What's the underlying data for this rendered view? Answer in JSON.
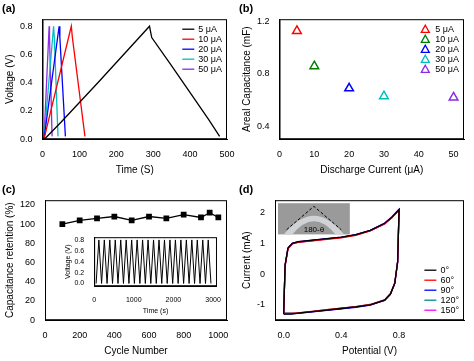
{
  "chart_data": [
    {
      "type": "line",
      "title": "(a)",
      "x_label": "Time (S)",
      "y_label": "Voltage (V)",
      "xlim": [
        0,
        500
      ],
      "xticks": [
        0,
        100,
        200,
        300,
        400,
        500
      ],
      "ylim": [
        0,
        0.85
      ],
      "yticks": [
        {
          "value": 0,
          "label": "0.0"
        },
        0.2,
        0.4,
        0.6,
        0.8
      ],
      "grid": false,
      "legend": "upper right",
      "marker": "none",
      "series": [
        {
          "name": "5 μA",
          "color": "#000000",
          "x": [
            5,
            50,
            150,
            290,
            296,
            350,
            400,
            450,
            480
          ],
          "values": [
            0,
            0.12,
            0.4,
            0.8,
            0.72,
            0.52,
            0.33,
            0.14,
            0.02
          ]
        },
        {
          "name": "10 μA",
          "color": "#ff0000",
          "x": [
            4,
            78,
            81,
            115
          ],
          "values": [
            0,
            0.8,
            0.72,
            0.02
          ]
        },
        {
          "name": "20 μA",
          "color": "#0000ff",
          "x": [
            4,
            45,
            47,
            62
          ],
          "values": [
            0,
            0.8,
            0.72,
            0.02
          ]
        },
        {
          "name": "30 μA",
          "color": "#00bfbf",
          "x": [
            4,
            30,
            32,
            42
          ],
          "values": [
            0,
            0.8,
            0.72,
            0.02
          ]
        },
        {
          "name": "50 μA",
          "color": "#8b2be2",
          "x": [
            4,
            18,
            19,
            26
          ],
          "values": [
            0,
            0.8,
            0.72,
            0.02
          ]
        }
      ]
    },
    {
      "type": "scatter",
      "title": "(b)",
      "x_label": "Discharge Current (μA)",
      "y_label": "Areal Capacitance (mF)",
      "xlim": [
        0,
        53
      ],
      "xticks": [
        0,
        10,
        20,
        30,
        40,
        50
      ],
      "ylim": [
        0.3,
        1.22
      ],
      "yticks": [
        0.4,
        0.8,
        1.2
      ],
      "grid": false,
      "legend": "upper right",
      "marker": "triangle",
      "series": [
        {
          "name": "5 μA",
          "color": "#ff0000",
          "x": [
            5
          ],
          "values": [
            1.13
          ]
        },
        {
          "name": "10 μA",
          "color": "#008000",
          "x": [
            10
          ],
          "values": [
            0.86
          ]
        },
        {
          "name": "20 μA",
          "color": "#0000ff",
          "x": [
            20
          ],
          "values": [
            0.69
          ]
        },
        {
          "name": "30 μA",
          "color": "#00bfbf",
          "x": [
            30
          ],
          "values": [
            0.63
          ]
        },
        {
          "name": "50 μA",
          "color": "#8b2be2",
          "x": [
            50
          ],
          "values": [
            0.62
          ]
        }
      ]
    },
    {
      "type": "line",
      "title": "(c)",
      "x_label": "Cycle Number",
      "y_label": "Capacitance retention (%)",
      "xlim": [
        0,
        1050
      ],
      "xticks": [
        0,
        200,
        400,
        600,
        800,
        1000
      ],
      "ylim": [
        0,
        125
      ],
      "yticks": [
        0,
        20,
        40,
        60,
        80,
        100,
        120
      ],
      "grid": false,
      "marker": "square",
      "series": [
        {
          "color": "#000000",
          "x": [
            100,
            200,
            300,
            400,
            500,
            600,
            700,
            800,
            900,
            950,
            1000
          ],
          "values": [
            100,
            104,
            106,
            108,
            104,
            108,
            106,
            110,
            107,
            112,
            107
          ]
        }
      ]
    },
    {
      "type": "line",
      "x_label": "Time (s)",
      "y_label": "Voltage (V)",
      "xlim": [
        0,
        3100
      ],
      "xticks": [
        0,
        1000,
        2000,
        3000
      ],
      "ylim": [
        -0.05,
        0.85
      ],
      "yticks": [
        {
          "value": 0,
          "label": "0.0"
        },
        0.2,
        0.4,
        0.6,
        0.8
      ],
      "grid": false,
      "marker": "none",
      "series": [
        {
          "color": "#000000",
          "x": [
            50,
            119,
            188,
            257,
            326,
            395,
            464,
            533,
            602,
            671,
            740,
            809,
            878,
            947,
            1016,
            1085,
            1154,
            1223,
            1292,
            1361,
            1430,
            1499,
            1568,
            1637,
            1706,
            1775,
            1844,
            1913,
            1982,
            2051,
            2120,
            2189,
            2258,
            2327,
            2396,
            2465,
            2534,
            2603,
            2672,
            2741,
            2810,
            2879,
            2948
          ],
          "values": [
            0,
            0.8,
            0,
            0.8,
            0,
            0.8,
            0,
            0.8,
            0,
            0.8,
            0,
            0.8,
            0,
            0.8,
            0,
            0.8,
            0,
            0.8,
            0,
            0.8,
            0,
            0.8,
            0,
            0.8,
            0,
            0.8,
            0,
            0.8,
            0,
            0.8,
            0,
            0.8,
            0,
            0.8,
            0,
            0.8,
            0,
            0.8,
            0,
            0.8,
            0,
            0.8,
            0
          ]
        }
      ]
    },
    {
      "type": "line",
      "title": "(d)",
      "x_label": "Potential (V)",
      "y_label": "Current (mA)",
      "xlim": [
        -0.06,
        1.25
      ],
      "xticks": [
        {
          "value": 0,
          "label": "0.0"
        },
        0.4,
        0.8
      ],
      "ylim": [
        -1.5,
        2.4
      ],
      "yticks": [
        -1,
        0,
        1,
        2
      ],
      "grid": false,
      "legend": "lower right",
      "marker": "none",
      "annotations": [
        "180-θ"
      ],
      "series": [
        {
          "name": "0°",
          "color": "#000000",
          "x": [
            0,
            0.01,
            0.03,
            0.06,
            0.1,
            0.2,
            0.3,
            0.4,
            0.5,
            0.6,
            0.7,
            0.75,
            0.8,
            0.79,
            0.77,
            0.74,
            0.7,
            0.6,
            0.5,
            0.4,
            0.3,
            0.2,
            0.1,
            0.05,
            0
          ],
          "values": [
            -1.3,
            0.3,
            0.85,
            1.0,
            1.05,
            1.1,
            1.15,
            1.2,
            1.28,
            1.42,
            1.65,
            1.85,
            2.1,
            0.4,
            -0.3,
            -0.65,
            -0.85,
            -1.0,
            -1.07,
            -1.12,
            -1.17,
            -1.22,
            -1.27,
            -1.3,
            -1.3
          ]
        },
        {
          "name": "60°",
          "color": "#ff0000",
          "x": [
            0,
            0.01,
            0.03,
            0.06,
            0.1,
            0.2,
            0.3,
            0.4,
            0.5,
            0.6,
            0.7,
            0.75,
            0.8,
            0.79,
            0.77,
            0.74,
            0.7,
            0.6,
            0.5,
            0.4,
            0.3,
            0.2,
            0.1,
            0.05,
            0
          ],
          "values": [
            -1.28,
            0.25,
            0.82,
            0.98,
            1.03,
            1.08,
            1.13,
            1.18,
            1.26,
            1.4,
            1.63,
            1.83,
            2.08,
            0.38,
            -0.3,
            -0.64,
            -0.84,
            -0.99,
            -1.06,
            -1.11,
            -1.16,
            -1.21,
            -1.26,
            -1.28,
            -1.28
          ]
        },
        {
          "name": "90°",
          "color": "#0000ff",
          "x": [
            0,
            0.01,
            0.03,
            0.06,
            0.1,
            0.2,
            0.3,
            0.4,
            0.5,
            0.6,
            0.7,
            0.75,
            0.8,
            0.79,
            0.77,
            0.74,
            0.7,
            0.6,
            0.5,
            0.4,
            0.3,
            0.2,
            0.1,
            0.05,
            0
          ],
          "values": [
            -1.29,
            0.28,
            0.84,
            0.99,
            1.04,
            1.09,
            1.14,
            1.19,
            1.27,
            1.41,
            1.64,
            1.84,
            2.09,
            0.39,
            -0.31,
            -0.66,
            -0.86,
            -1.01,
            -1.08,
            -1.13,
            -1.18,
            -1.23,
            -1.28,
            -1.29,
            -1.29
          ]
        },
        {
          "name": "120°",
          "color": "#008b8b",
          "x": [
            0,
            0.01,
            0.03,
            0.06,
            0.1,
            0.2,
            0.3,
            0.4,
            0.5,
            0.6,
            0.7,
            0.75,
            0.8,
            0.79,
            0.77,
            0.74,
            0.7,
            0.6,
            0.5,
            0.4,
            0.3,
            0.2,
            0.1,
            0.05,
            0
          ],
          "values": [
            -1.27,
            0.27,
            0.83,
            0.99,
            1.04,
            1.09,
            1.14,
            1.19,
            1.27,
            1.41,
            1.64,
            1.85,
            2.1,
            0.4,
            -0.29,
            -0.64,
            -0.84,
            -0.99,
            -1.06,
            -1.11,
            -1.16,
            -1.21,
            -1.26,
            -1.27,
            -1.27
          ]
        },
        {
          "name": "150°",
          "color": "#ff00ff",
          "x": [
            0,
            0.01,
            0.03,
            0.06,
            0.1,
            0.2,
            0.3,
            0.4,
            0.5,
            0.6,
            0.7,
            0.75,
            0.8,
            0.79,
            0.77,
            0.74,
            0.7,
            0.6,
            0.5,
            0.4,
            0.3,
            0.2,
            0.1,
            0.05,
            0
          ],
          "values": [
            -1.28,
            0.29,
            0.84,
            1.0,
            1.05,
            1.1,
            1.15,
            1.2,
            1.28,
            1.42,
            1.66,
            1.86,
            2.11,
            0.41,
            -0.3,
            -0.65,
            -0.85,
            -1.0,
            -1.07,
            -1.12,
            -1.17,
            -1.22,
            -1.27,
            -1.28,
            -1.28
          ]
        }
      ]
    }
  ]
}
